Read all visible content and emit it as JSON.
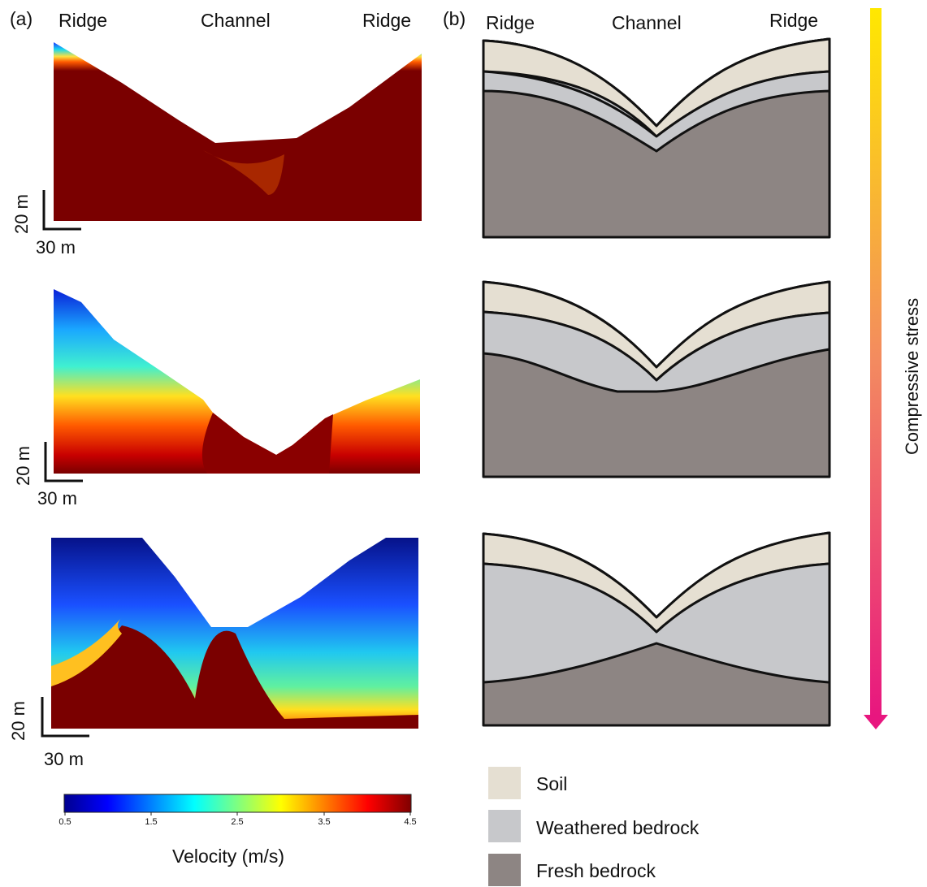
{
  "panel_a": {
    "label": "(a)",
    "left_label": "Ridge",
    "center_label": "Channel",
    "right_label": "Ridge"
  },
  "panel_b": {
    "label": "(b)",
    "left_label": "Ridge",
    "center_label": "Channel",
    "right_label": "Ridge"
  },
  "scale_bar": {
    "vertical": "20 m",
    "horizontal": "30 m"
  },
  "colorbar": {
    "title": "Velocity (m/s)",
    "ticks": [
      "0.5",
      "1.5",
      "2.5",
      "3.5",
      "4.5"
    ]
  },
  "stress_axis": {
    "label": "Compressive stress",
    "color_top": "#ffe800",
    "color_bottom": "#e8167f"
  },
  "legend": [
    {
      "label": "Soil",
      "color": "#e5dfd2"
    },
    {
      "label": "Weathered bedrock",
      "color": "#c7c8cb"
    },
    {
      "label": "Fresh bedrock",
      "color": "#8d8583"
    }
  ]
}
